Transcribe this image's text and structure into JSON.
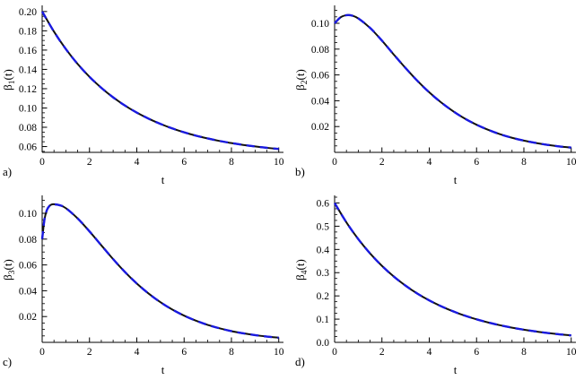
{
  "page": {
    "background": "#ffffff"
  },
  "style": {
    "axis_color": "#000000",
    "text_color": "#000000",
    "tick_label_size": 11.5,
    "series": [
      {
        "name": "reference-solid",
        "color": "#111111",
        "width": 2.0,
        "dash": "none"
      },
      {
        "name": "approximation-dashed",
        "color": "#1a1ae0",
        "width": 2.4,
        "dash": "9 6"
      }
    ]
  },
  "chart_data": [
    {
      "type": "line",
      "panel_label": "a)",
      "xlabel": "t",
      "ylabel": {
        "base": "β",
        "sub": "1",
        "suffix": "(t)"
      },
      "xlim": [
        0,
        10.2
      ],
      "ylim": [
        0.054,
        0.2045
      ],
      "xticks": [
        0,
        2,
        4,
        6,
        8,
        10
      ],
      "xtick_labels": [
        "0",
        "2",
        "4",
        "6",
        "8",
        "10"
      ],
      "yticks": [
        0.06,
        0.08,
        0.1,
        0.12,
        0.14,
        0.16,
        0.18,
        0.2
      ],
      "ytick_labels": [
        "0.06",
        "0.08",
        "0.10",
        "0.12",
        "0.14",
        "0.16",
        "0.18",
        "0.20"
      ],
      "x_minor_step": 0.5,
      "y_minor_step": 0.005,
      "x": [
        0,
        0.5,
        1,
        1.5,
        2,
        2.5,
        3,
        3.5,
        4,
        4.5,
        5,
        5.5,
        6,
        6.5,
        7,
        7.5,
        8,
        8.5,
        9,
        9.5,
        10
      ],
      "y": [
        0.2,
        0.1791,
        0.1611,
        0.1456,
        0.1323,
        0.1209,
        0.111,
        0.1025,
        0.0952,
        0.0889,
        0.0835,
        0.0788,
        0.0748,
        0.0713,
        0.0684,
        0.0658,
        0.0636,
        0.0617,
        0.0601,
        0.0587,
        0.0575
      ]
    },
    {
      "type": "line",
      "panel_label": "b)",
      "xlabel": "t",
      "ylabel": {
        "base": "β",
        "sub": "2",
        "suffix": "(t)"
      },
      "xlim": [
        0,
        10.2
      ],
      "ylim": [
        0,
        0.1125
      ],
      "xticks": [
        0,
        2,
        4,
        6,
        8,
        10
      ],
      "xtick_labels": [
        "0",
        "2",
        "4",
        "6",
        "8",
        "10"
      ],
      "yticks": [
        0.02,
        0.04,
        0.06,
        0.08,
        0.1
      ],
      "ytick_labels": [
        "0.02",
        "0.04",
        "0.06",
        "0.08",
        "0.10"
      ],
      "x_minor_step": 0.5,
      "y_minor_step": 0.005,
      "x": [
        0,
        0.25,
        0.5,
        0.75,
        1,
        1.5,
        2,
        2.5,
        3,
        3.5,
        4,
        4.5,
        5,
        5.5,
        6,
        6.5,
        7,
        7.5,
        8,
        8.5,
        9,
        9.5,
        10
      ],
      "y": [
        0.1,
        0.1046,
        0.1063,
        0.1059,
        0.1038,
        0.0964,
        0.0866,
        0.0758,
        0.0653,
        0.0554,
        0.0465,
        0.0387,
        0.032,
        0.0262,
        0.0214,
        0.0174,
        0.014,
        0.0113,
        0.0091,
        0.0073,
        0.0058,
        0.0046,
        0.0037
      ]
    },
    {
      "type": "line",
      "panel_label": "c)",
      "xlabel": "t",
      "ylabel": {
        "base": "β",
        "sub": "3",
        "suffix": "(t)"
      },
      "xlim": [
        0,
        10.2
      ],
      "ylim": [
        0,
        0.1125
      ],
      "xticks": [
        0,
        2,
        4,
        6,
        8,
        10
      ],
      "xtick_labels": [
        "0",
        "2",
        "4",
        "6",
        "8",
        "10"
      ],
      "yticks": [
        0.02,
        0.04,
        0.06,
        0.08,
        0.1
      ],
      "ytick_labels": [
        "0.02",
        "0.04",
        "0.06",
        "0.08",
        "0.10"
      ],
      "x_minor_step": 0.5,
      "y_minor_step": 0.005,
      "x": [
        0,
        0.1,
        0.2,
        0.3,
        0.4,
        0.5,
        0.75,
        1,
        1.5,
        2,
        2.5,
        3,
        3.5,
        4,
        4.5,
        5,
        5.5,
        6,
        6.5,
        7,
        7.5,
        8,
        8.5,
        9,
        9.5,
        10
      ],
      "y": [
        0.08,
        0.0955,
        0.1025,
        0.1055,
        0.1068,
        0.107,
        0.1062,
        0.104,
        0.096,
        0.086,
        0.0752,
        0.0645,
        0.0545,
        0.0456,
        0.0378,
        0.0311,
        0.0254,
        0.0207,
        0.0168,
        0.0135,
        0.0109,
        0.0087,
        0.007,
        0.0056,
        0.0045,
        0.0036
      ]
    },
    {
      "type": "line",
      "panel_label": "d)",
      "xlabel": "t",
      "ylabel": {
        "base": "β",
        "sub": "4",
        "suffix": "(t)"
      },
      "xlim": [
        0,
        10.2
      ],
      "ylim": [
        0,
        0.625
      ],
      "xticks": [
        0,
        2,
        4,
        6,
        8,
        10
      ],
      "xtick_labels": [
        "0",
        "2",
        "4",
        "6",
        "8",
        "10"
      ],
      "yticks": [
        0,
        0.1,
        0.2,
        0.3,
        0.4,
        0.5,
        0.6
      ],
      "ytick_labels": [
        "0.0",
        "0.1",
        "0.2",
        "0.3",
        "0.4",
        "0.5",
        "0.6"
      ],
      "x_minor_step": 0.5,
      "y_minor_step": 0.025,
      "x": [
        0,
        0.5,
        1,
        1.5,
        2,
        2.5,
        3,
        3.5,
        4,
        4.5,
        5,
        5.5,
        6,
        6.5,
        7,
        7.5,
        8,
        8.5,
        9,
        9.5,
        10
      ],
      "y": [
        0.6,
        0.5164,
        0.4445,
        0.3826,
        0.3293,
        0.2834,
        0.244,
        0.2099,
        0.1807,
        0.1555,
        0.1339,
        0.1152,
        0.0992,
        0.0854,
        0.0735,
        0.0632,
        0.0545,
        0.0469,
        0.0403,
        0.0347,
        0.0299
      ]
    }
  ]
}
